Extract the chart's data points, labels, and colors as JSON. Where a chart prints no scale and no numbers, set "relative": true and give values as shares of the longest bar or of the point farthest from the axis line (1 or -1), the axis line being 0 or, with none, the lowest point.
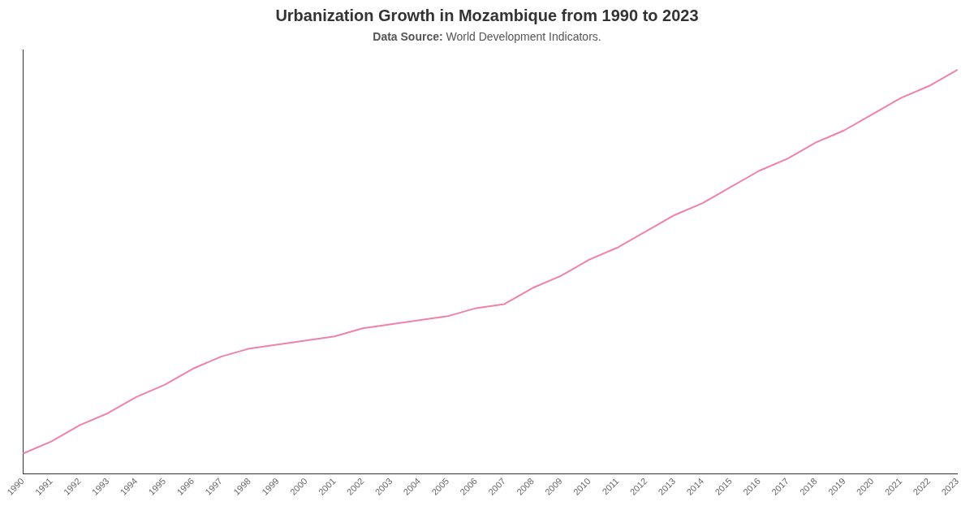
{
  "chart_data": {
    "type": "line",
    "title": "Urbanization Growth in Mozambique from 1990 to 2023",
    "subtitle": "Data Source: World Development Indicators.",
    "relative": true,
    "grid": false,
    "legend": false,
    "marker": "none",
    "line_style": "solid",
    "categories": [
      "1990",
      "1991",
      "1992",
      "1993",
      "1994",
      "1995",
      "1996",
      "1997",
      "1998",
      "1999",
      "2000",
      "2001",
      "2002",
      "2003",
      "2004",
      "2005",
      "2006",
      "2007",
      "2008",
      "2009",
      "2010",
      "2011",
      "2012",
      "2013",
      "2014",
      "2015",
      "2016",
      "2017",
      "2018",
      "2019",
      "2020",
      "2021",
      "2022",
      "2023"
    ],
    "series": [
      {
        "color": "#f081ac",
        "values": [
          0.05,
          0.08,
          0.12,
          0.15,
          0.19,
          0.22,
          0.26,
          0.29,
          0.31,
          0.32,
          0.33,
          0.34,
          0.36,
          0.37,
          0.38,
          0.39,
          0.41,
          0.42,
          0.46,
          0.49,
          0.53,
          0.56,
          0.6,
          0.64,
          0.67,
          0.71,
          0.75,
          0.78,
          0.82,
          0.85,
          0.89,
          0.93,
          0.96,
          1
        ]
      }
    ]
  }
}
